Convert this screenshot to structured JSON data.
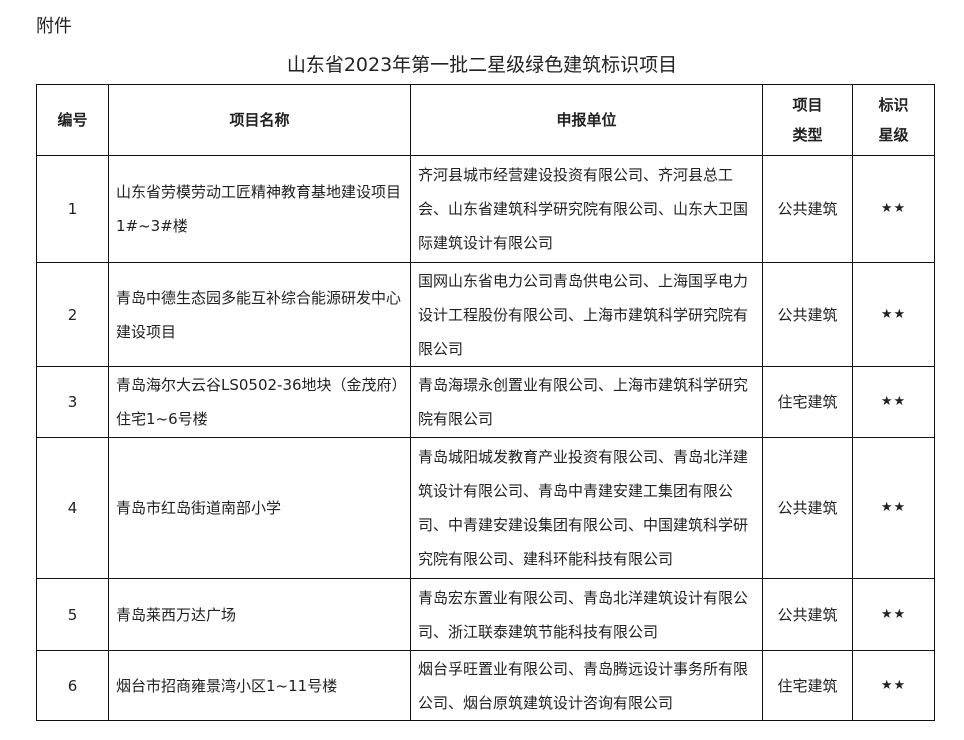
{
  "attachment": "附件",
  "title": "山东省2023年第一批二星级绿色建筑标识项目",
  "headers": {
    "no": "编号",
    "name": "项目名称",
    "unit": "申报单位",
    "type1": "项目",
    "type2": "类型",
    "star1": "标识",
    "star2": "星级"
  },
  "rows": [
    {
      "no": "1",
      "name": "山东省劳模劳动工匠精神教育基地建设项目1#~3#楼",
      "unit": "齐河县城市经营建设投资有限公司、齐河县总工会、山东省建筑科学研究院有限公司、山东大卫国际建筑设计有限公司",
      "type": "公共建筑",
      "stars": "★★"
    },
    {
      "no": "2",
      "name": "青岛中德生态园多能互补综合能源研发中心建设项目",
      "unit": "国网山东省电力公司青岛供电公司、上海国孚电力设计工程股份有限公司、上海市建筑科学研究院有限公司",
      "type": "公共建筑",
      "stars": "★★"
    },
    {
      "no": "3",
      "name": "青岛海尔大云谷LS0502-36地块（金茂府）住宅1~6号楼",
      "unit": "青岛海璟永创置业有限公司、上海市建筑科学研究院有限公司",
      "type": "住宅建筑",
      "stars": "★★"
    },
    {
      "no": "4",
      "name": "青岛市红岛街道南部小学",
      "unit": "青岛城阳城发教育产业投资有限公司、青岛北洋建筑设计有限公司、青岛中青建安建工集团有限公司、中青建安建设集团有限公司、中国建筑科学研究院有限公司、建科环能科技有限公司",
      "type": "公共建筑",
      "stars": "★★"
    },
    {
      "no": "5",
      "name": "青岛莱西万达广场",
      "unit": "青岛宏东置业有限公司、青岛北洋建筑设计有限公司、浙江联泰建筑节能科技有限公司",
      "type": "公共建筑",
      "stars": "★★"
    },
    {
      "no": "6",
      "name": "烟台市招商雍景湾小区1~11号楼",
      "unit": "烟台孚旺置业有限公司、青岛腾远设计事务所有限公司、烟台原筑建筑设计咨询有限公司",
      "type": "住宅建筑",
      "stars": "★★"
    }
  ]
}
